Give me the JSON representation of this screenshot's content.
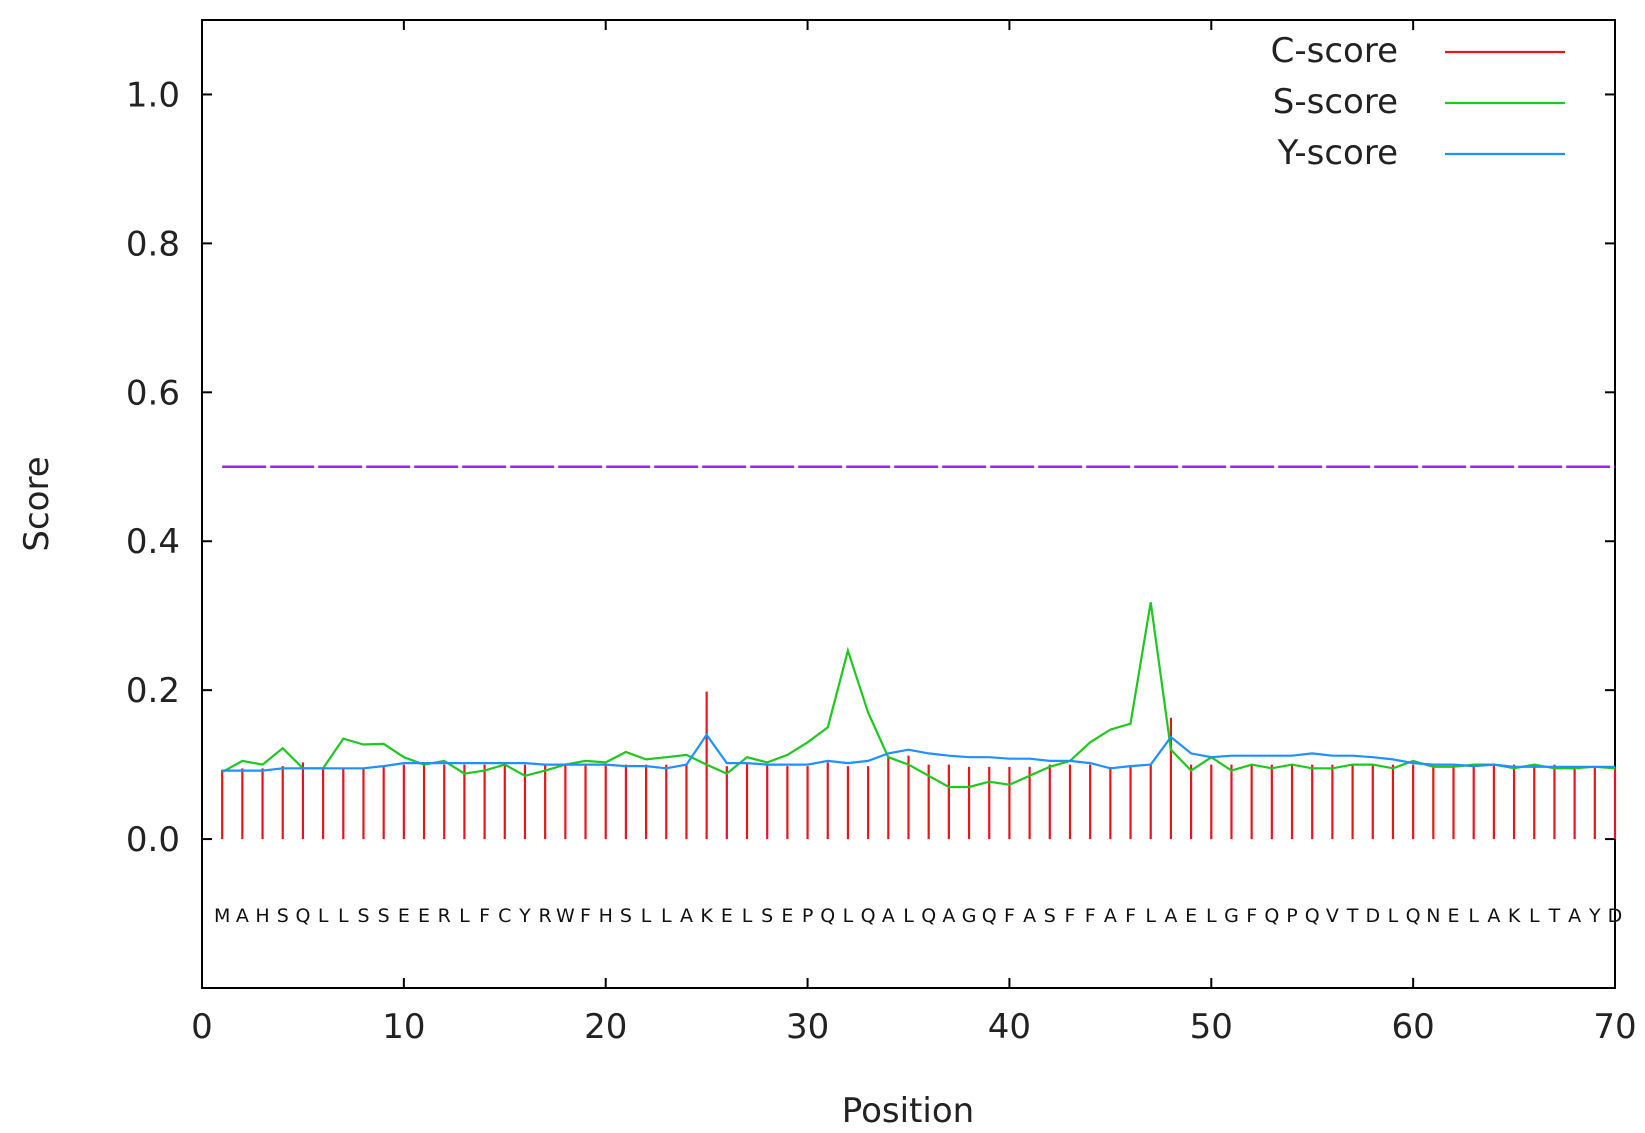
{
  "chart_data": {
    "type": "line",
    "xlabel": "Position",
    "ylabel": "Score",
    "xlim": [
      0,
      70
    ],
    "ylim": [
      -0.2,
      1.1
    ],
    "x_ticks": [
      "0",
      "10",
      "20",
      "30",
      "40",
      "50",
      "60",
      "70"
    ],
    "y_ticks": [
      "0.0",
      "0.2",
      "0.4",
      "0.6",
      "0.8",
      "1.0"
    ],
    "legend_position": "top-right",
    "grid": false,
    "sequence": "MAHSQLLSSEERLFCYRWFHSLLAKELSEPQLQALQAGQFASFFAFLAELGFQPQVTDLQNELAKLTAYD",
    "threshold": {
      "value": 0.5,
      "color": "#a020f0"
    },
    "series": [
      {
        "name": "C-score",
        "color": "#e8141e",
        "style": "impulse",
        "x": [
          1,
          2,
          3,
          4,
          5,
          6,
          7,
          8,
          9,
          10,
          11,
          12,
          13,
          14,
          15,
          16,
          17,
          18,
          19,
          20,
          21,
          22,
          23,
          24,
          25,
          26,
          27,
          28,
          29,
          30,
          31,
          32,
          33,
          34,
          35,
          36,
          37,
          38,
          39,
          40,
          41,
          42,
          43,
          44,
          45,
          46,
          47,
          48,
          49,
          50,
          51,
          52,
          53,
          54,
          55,
          56,
          57,
          58,
          59,
          60,
          61,
          62,
          63,
          64,
          65,
          66,
          67,
          68,
          69,
          70
        ],
        "values": [
          0.093,
          0.095,
          0.095,
          0.098,
          0.103,
          0.095,
          0.095,
          0.095,
          0.098,
          0.1,
          0.1,
          0.1,
          0.1,
          0.1,
          0.1,
          0.1,
          0.1,
          0.1,
          0.1,
          0.1,
          0.1,
          0.1,
          0.1,
          0.1,
          0.198,
          0.098,
          0.102,
          0.1,
          0.098,
          0.098,
          0.103,
          0.098,
          0.098,
          0.112,
          0.112,
          0.1,
          0.1,
          0.097,
          0.097,
          0.097,
          0.097,
          0.1,
          0.1,
          0.1,
          0.097,
          0.097,
          0.1,
          0.163,
          0.1,
          0.1,
          0.1,
          0.1,
          0.1,
          0.1,
          0.1,
          0.1,
          0.1,
          0.1,
          0.1,
          0.1,
          0.1,
          0.1,
          0.1,
          0.1,
          0.1,
          0.1,
          0.1,
          0.097,
          0.097,
          0.097
        ]
      },
      {
        "name": "S-score",
        "color": "#1ec81e",
        "style": "line",
        "x": [
          1,
          2,
          3,
          4,
          5,
          6,
          7,
          8,
          9,
          10,
          11,
          12,
          13,
          14,
          15,
          16,
          17,
          18,
          19,
          20,
          21,
          22,
          23,
          24,
          25,
          26,
          27,
          28,
          29,
          30,
          31,
          32,
          33,
          34,
          35,
          36,
          37,
          38,
          39,
          40,
          41,
          42,
          43,
          44,
          45,
          46,
          47,
          48,
          49,
          50,
          51,
          52,
          53,
          54,
          55,
          56,
          57,
          58,
          59,
          60,
          61,
          62,
          63,
          64,
          65,
          66,
          67,
          68,
          69,
          70
        ],
        "values": [
          0.09,
          0.105,
          0.1,
          0.122,
          0.095,
          0.095,
          0.135,
          0.127,
          0.128,
          0.11,
          0.1,
          0.105,
          0.088,
          0.092,
          0.1,
          0.085,
          0.092,
          0.1,
          0.105,
          0.103,
          0.117,
          0.107,
          0.11,
          0.113,
          0.1,
          0.088,
          0.11,
          0.103,
          0.113,
          0.13,
          0.15,
          0.253,
          0.17,
          0.11,
          0.1,
          0.085,
          0.07,
          0.07,
          0.077,
          0.073,
          0.085,
          0.097,
          0.105,
          0.13,
          0.147,
          0.155,
          0.318,
          0.12,
          0.092,
          0.11,
          0.092,
          0.1,
          0.095,
          0.1,
          0.095,
          0.095,
          0.1,
          0.1,
          0.095,
          0.105,
          0.097,
          0.097,
          0.1,
          0.1,
          0.095,
          0.1,
          0.095,
          0.095,
          0.097,
          0.095
        ]
      },
      {
        "name": "Y-score",
        "color": "#1e90ff",
        "style": "line",
        "x": [
          1,
          2,
          3,
          4,
          5,
          6,
          7,
          8,
          9,
          10,
          11,
          12,
          13,
          14,
          15,
          16,
          17,
          18,
          19,
          20,
          21,
          22,
          23,
          24,
          25,
          26,
          27,
          28,
          29,
          30,
          31,
          32,
          33,
          34,
          35,
          36,
          37,
          38,
          39,
          40,
          41,
          42,
          43,
          44,
          45,
          46,
          47,
          48,
          49,
          50,
          51,
          52,
          53,
          54,
          55,
          56,
          57,
          58,
          59,
          60,
          61,
          62,
          63,
          64,
          65,
          66,
          67,
          68,
          69,
          70
        ],
        "values": [
          0.092,
          0.092,
          0.092,
          0.095,
          0.095,
          0.095,
          0.095,
          0.095,
          0.098,
          0.102,
          0.102,
          0.102,
          0.102,
          0.102,
          0.102,
          0.102,
          0.1,
          0.1,
          0.1,
          0.1,
          0.098,
          0.098,
          0.095,
          0.1,
          0.14,
          0.102,
          0.102,
          0.1,
          0.1,
          0.1,
          0.105,
          0.102,
          0.105,
          0.115,
          0.12,
          0.115,
          0.112,
          0.11,
          0.11,
          0.108,
          0.108,
          0.105,
          0.105,
          0.102,
          0.095,
          0.098,
          0.1,
          0.137,
          0.115,
          0.11,
          0.112,
          0.112,
          0.112,
          0.112,
          0.115,
          0.112,
          0.112,
          0.11,
          0.107,
          0.102,
          0.1,
          0.1,
          0.098,
          0.1,
          0.097,
          0.097,
          0.097,
          0.097,
          0.097,
          0.097
        ]
      }
    ]
  }
}
